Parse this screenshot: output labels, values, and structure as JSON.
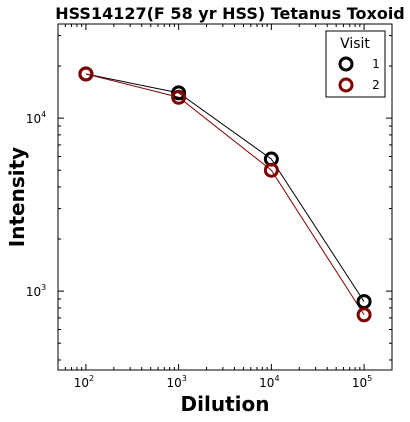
{
  "chart_data": {
    "type": "line",
    "title": "HSS14127(F 58 yr HSS) Tetanus Toxoid",
    "xlabel": "Dilution",
    "ylabel": "Intensity",
    "xscale": "log",
    "yscale": "log",
    "xlim": [
      50,
      200000
    ],
    "ylim": [
      350,
      35000
    ],
    "x": [
      100,
      1000,
      10000,
      100000
    ],
    "x_tick_labels": [
      {
        "value": 100,
        "base": "10",
        "exp": "2"
      },
      {
        "value": 1000,
        "base": "10",
        "exp": "3"
      },
      {
        "value": 10000,
        "base": "10",
        "exp": "4"
      },
      {
        "value": 100000,
        "base": "10",
        "exp": "5"
      }
    ],
    "y_tick_labels": [
      {
        "value": 1000,
        "base": "10",
        "exp": "3"
      },
      {
        "value": 10000,
        "base": "10",
        "exp": "4"
      }
    ],
    "series": [
      {
        "name": "1",
        "color": "#000000",
        "values": [
          18000,
          14000,
          5800,
          870
        ]
      },
      {
        "name": "2",
        "color": "#800000",
        "values": [
          18000,
          13200,
          5000,
          730
        ]
      }
    ],
    "legend": {
      "title": "Visit",
      "placement": "top-right"
    },
    "grid": false
  }
}
